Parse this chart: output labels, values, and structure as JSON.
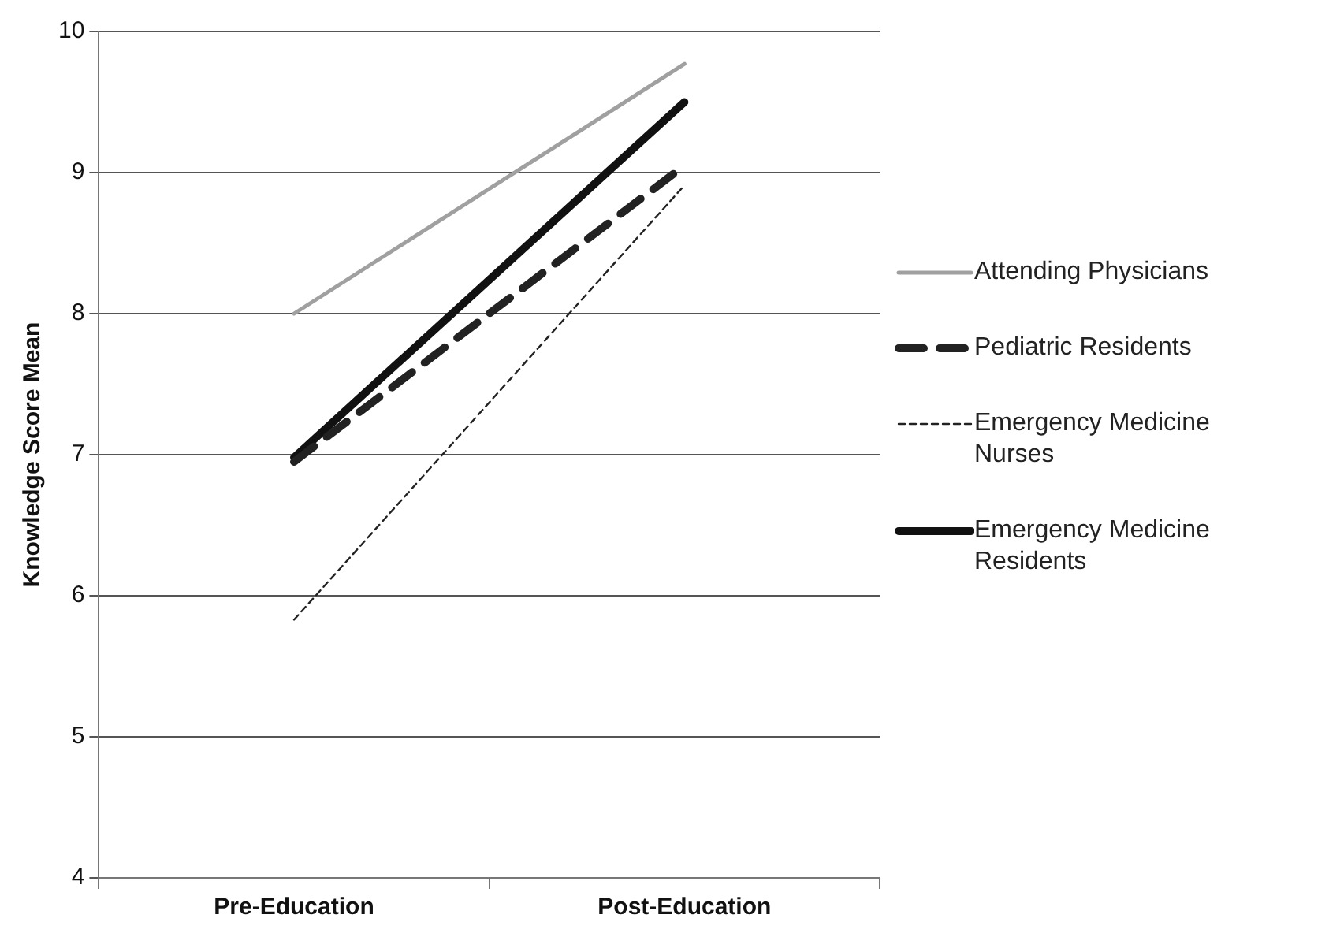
{
  "chart_data": {
    "type": "line",
    "ylabel": "Knowledge Score Mean",
    "categories": [
      "Pre-Education",
      "Post-Education"
    ],
    "ylim": [
      4,
      10
    ],
    "yticks": [
      4,
      5,
      6,
      7,
      8,
      9,
      10
    ],
    "grid": "y",
    "legend": "right",
    "marker": "none",
    "series": [
      {
        "name": "Attending Physicians",
        "color": "#a0a0a0",
        "values": [
          8.0,
          9.77
        ],
        "line_style": "solid"
      },
      {
        "name": "Pediatric Residents",
        "color": "#222222",
        "values": [
          6.95,
          9.05
        ],
        "line_style": "dashed"
      },
      {
        "name": "Emergency Medicine Nurses",
        "color": "#222222",
        "values": [
          5.83,
          8.91
        ],
        "line_style": "dotted"
      },
      {
        "name": "Emergency Medicine Residents",
        "color": "#111111",
        "values": [
          6.98,
          9.5
        ],
        "line_style": "solid"
      }
    ]
  }
}
